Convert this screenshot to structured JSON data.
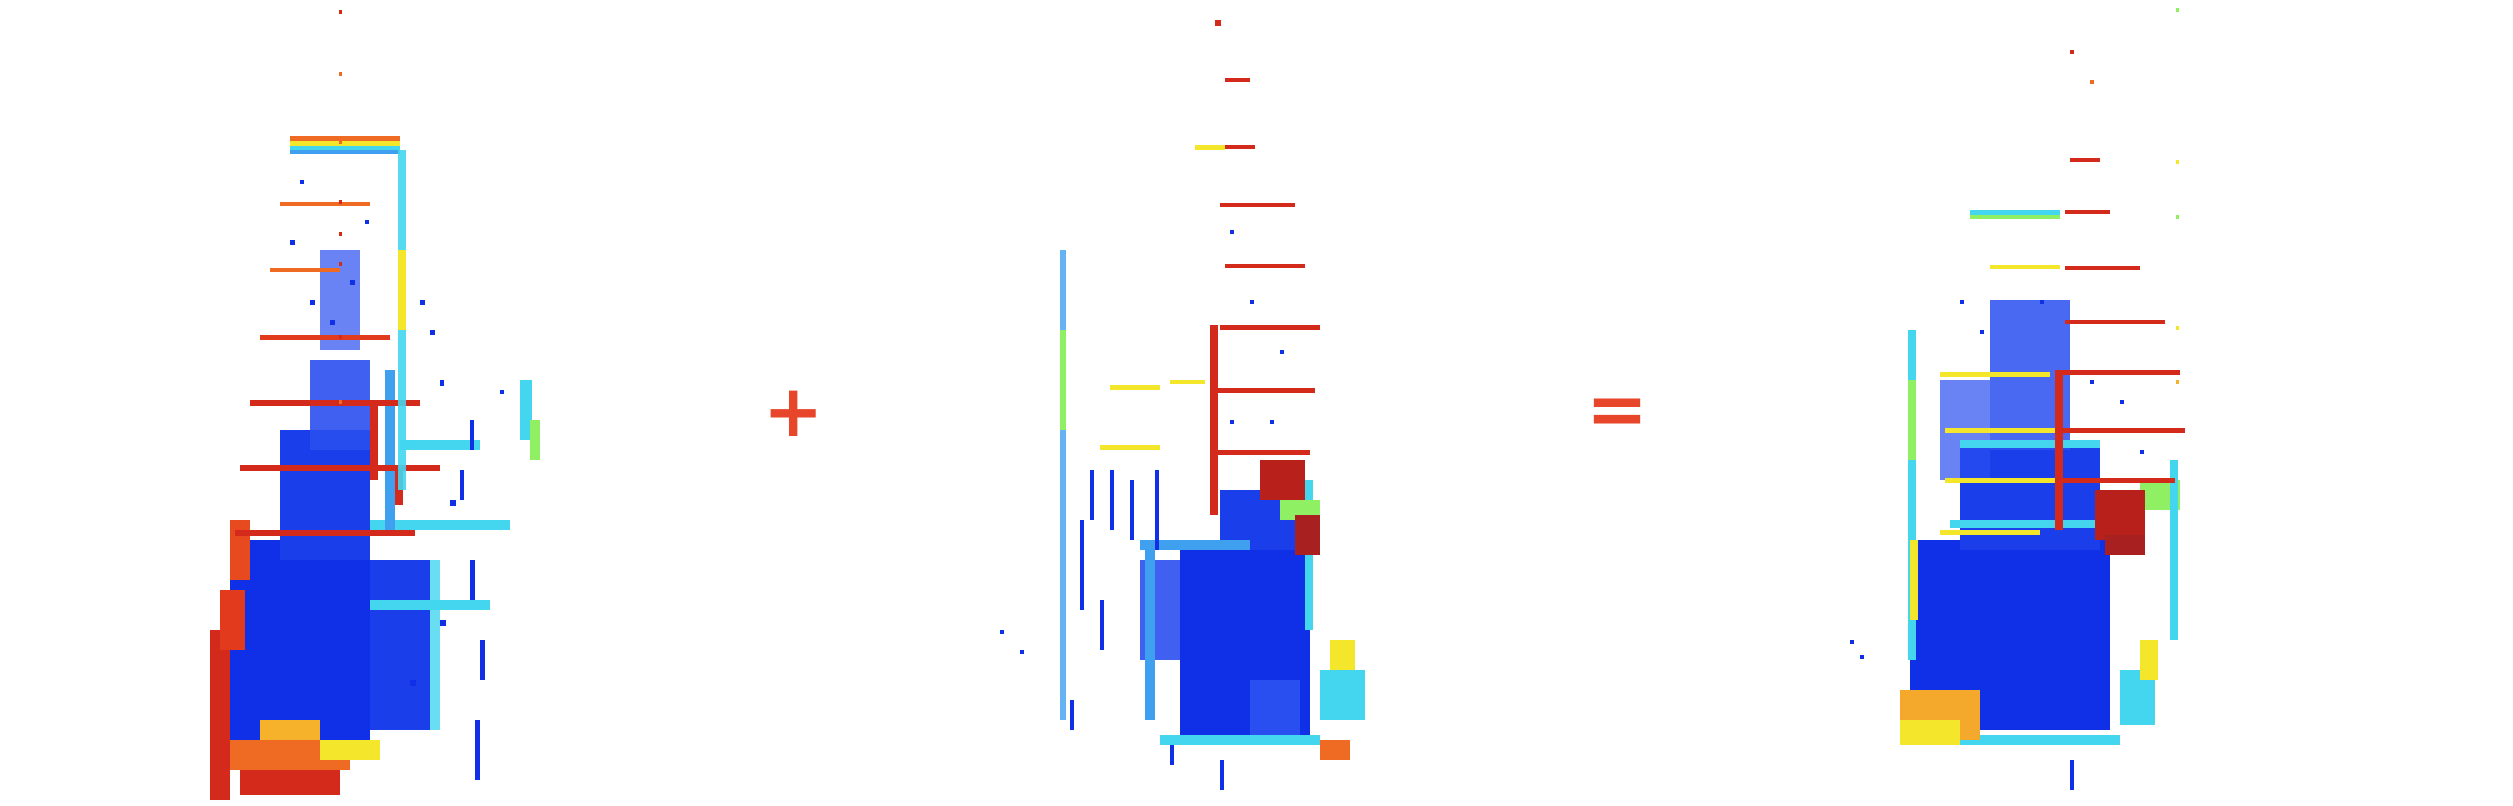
{
  "operators": {
    "plus": "+",
    "equals": "="
  },
  "panels": [
    {
      "id": "left",
      "label": ""
    },
    {
      "id": "middle",
      "label": ""
    },
    {
      "id": "right",
      "label": ""
    }
  ],
  "colors": {
    "red": "#d42a1c",
    "orange": "#ef6a22",
    "yellow": "#f4e62a",
    "green": "#8ef062",
    "cyan": "#44d6ef",
    "lightblue": "#3fa0ef",
    "blue": "#1030e8",
    "operator": "#e8462a"
  }
}
